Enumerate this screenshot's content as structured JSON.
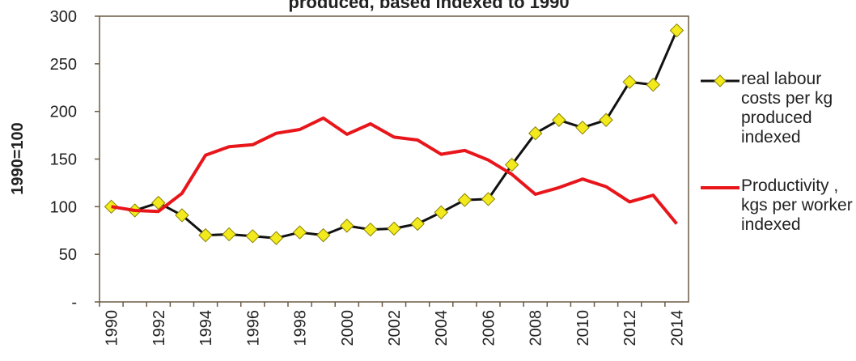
{
  "chart_data": {
    "type": "line",
    "title": "produced, based indexed to 1990",
    "y_label": "1990=100",
    "categories": [
      "1990",
      null,
      "1992",
      null,
      "1994",
      null,
      "1996",
      null,
      "1998",
      null,
      "2000",
      null,
      "2002",
      null,
      "2004",
      null,
      "2006",
      null,
      "2008",
      null,
      "2010",
      null,
      "2012",
      null,
      "2014"
    ],
    "series": [
      {
        "name": "real labour costs per kg produced indexed",
        "color": "#111111",
        "marker_color": "#f2ea1c",
        "values": [
          100,
          96,
          104,
          91,
          70,
          71,
          69,
          67,
          73,
          70,
          80,
          76,
          77,
          82,
          94,
          107,
          108,
          144,
          177,
          191,
          183,
          191,
          231,
          228,
          285
        ]
      },
      {
        "name": "Productivity , kgs per worker indexed",
        "color": "#e8161b",
        "values": [
          100,
          96,
          95,
          114,
          154,
          163,
          165,
          177,
          181,
          193,
          176,
          187,
          173,
          170,
          155,
          159,
          149,
          134,
          113,
          120,
          129,
          121,
          105,
          112,
          82
        ]
      }
    ],
    "ylim": [
      0,
      300
    ],
    "yticks": [
      {
        "value": 0,
        "label": "-"
      },
      50,
      100,
      150,
      200,
      250,
      300
    ],
    "grid": false,
    "legend": "right"
  }
}
